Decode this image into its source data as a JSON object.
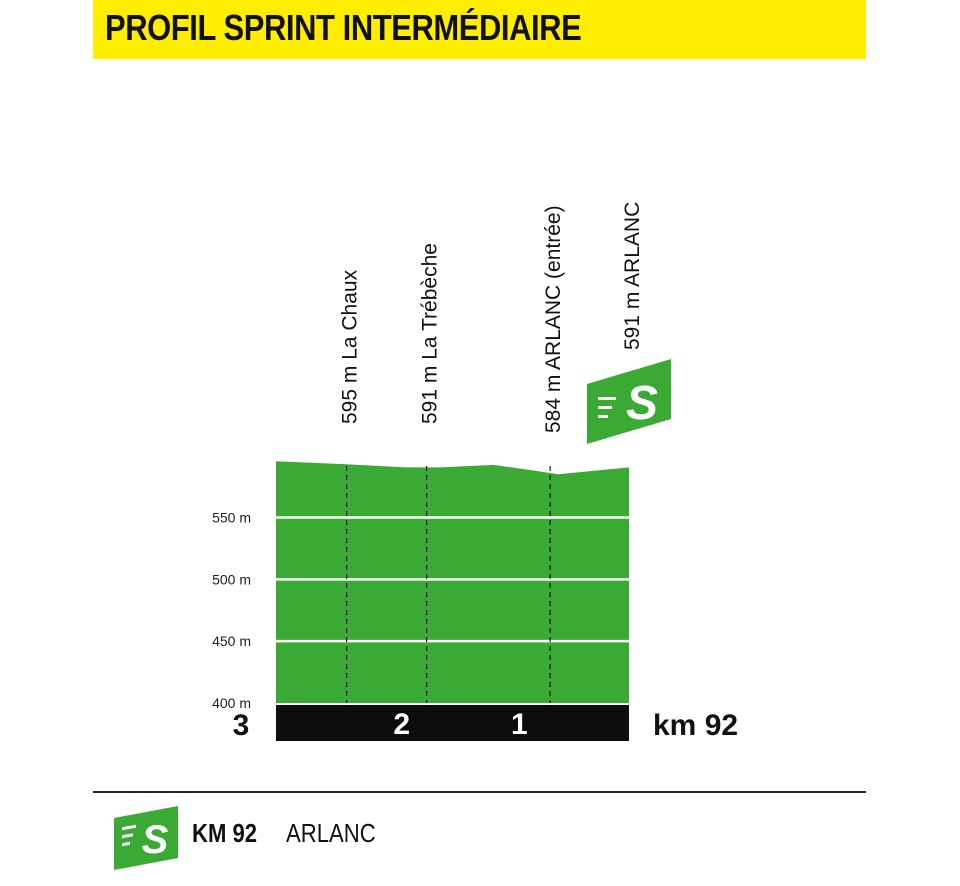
{
  "header": {
    "title": "PROFIL SPRINT INTERMÉDIAIRE",
    "accent_color": "#ffed00"
  },
  "chart_data": {
    "type": "area",
    "profile_color": "#3aaa35",
    "ylim": [
      400,
      600
    ],
    "ylabel_unit": "m",
    "y_ticks": [
      {
        "value": 400,
        "label": "400 m"
      },
      {
        "value": 450,
        "label": "450 m"
      },
      {
        "value": 500,
        "label": "500 m"
      },
      {
        "value": 550,
        "label": "550 m"
      }
    ],
    "x_axis": {
      "start_label": "3",
      "end_label": "km 92",
      "ticks": [
        {
          "value": 2,
          "label": "2"
        },
        {
          "value": 1,
          "label": "1"
        }
      ]
    },
    "distance_to_sprint": [
      3.0,
      2.2,
      1.5,
      1.0,
      0.65,
      0.0
    ],
    "altitude": [
      595,
      593,
      591,
      591,
      592,
      591
    ],
    "profile": [
      {
        "d": 3.0,
        "alt": 595.5
      },
      {
        "d": 2.4,
        "alt": 593
      },
      {
        "d": 1.9,
        "alt": 590.5
      },
      {
        "d": 1.6,
        "alt": 590.5
      },
      {
        "d": 1.15,
        "alt": 592.5
      },
      {
        "d": 0.85,
        "alt": 588.5
      },
      {
        "d": 0.6,
        "alt": 585
      },
      {
        "d": 0.0,
        "alt": 590.5
      }
    ],
    "landmarks": [
      {
        "d": 2.4,
        "altitude_label": "595 m",
        "name": "La Chaux",
        "label": "595 m La Chaux"
      },
      {
        "d": 1.72,
        "altitude_label": "591 m",
        "name": "La Trébèche",
        "label": "591 m La Trébèche"
      },
      {
        "d": 0.67,
        "altitude_label": "584 m",
        "name": "ARLANC (entrée)",
        "label": "584 m ARLANC (entrée)"
      },
      {
        "d": 0.0,
        "altitude_label": "591 m",
        "name": "ARLANC",
        "label": "591 m ARLANC",
        "sprint": true
      }
    ]
  },
  "footer": {
    "km": "KM 92",
    "place": "ARLANC",
    "icon": "sprint-s-icon"
  }
}
